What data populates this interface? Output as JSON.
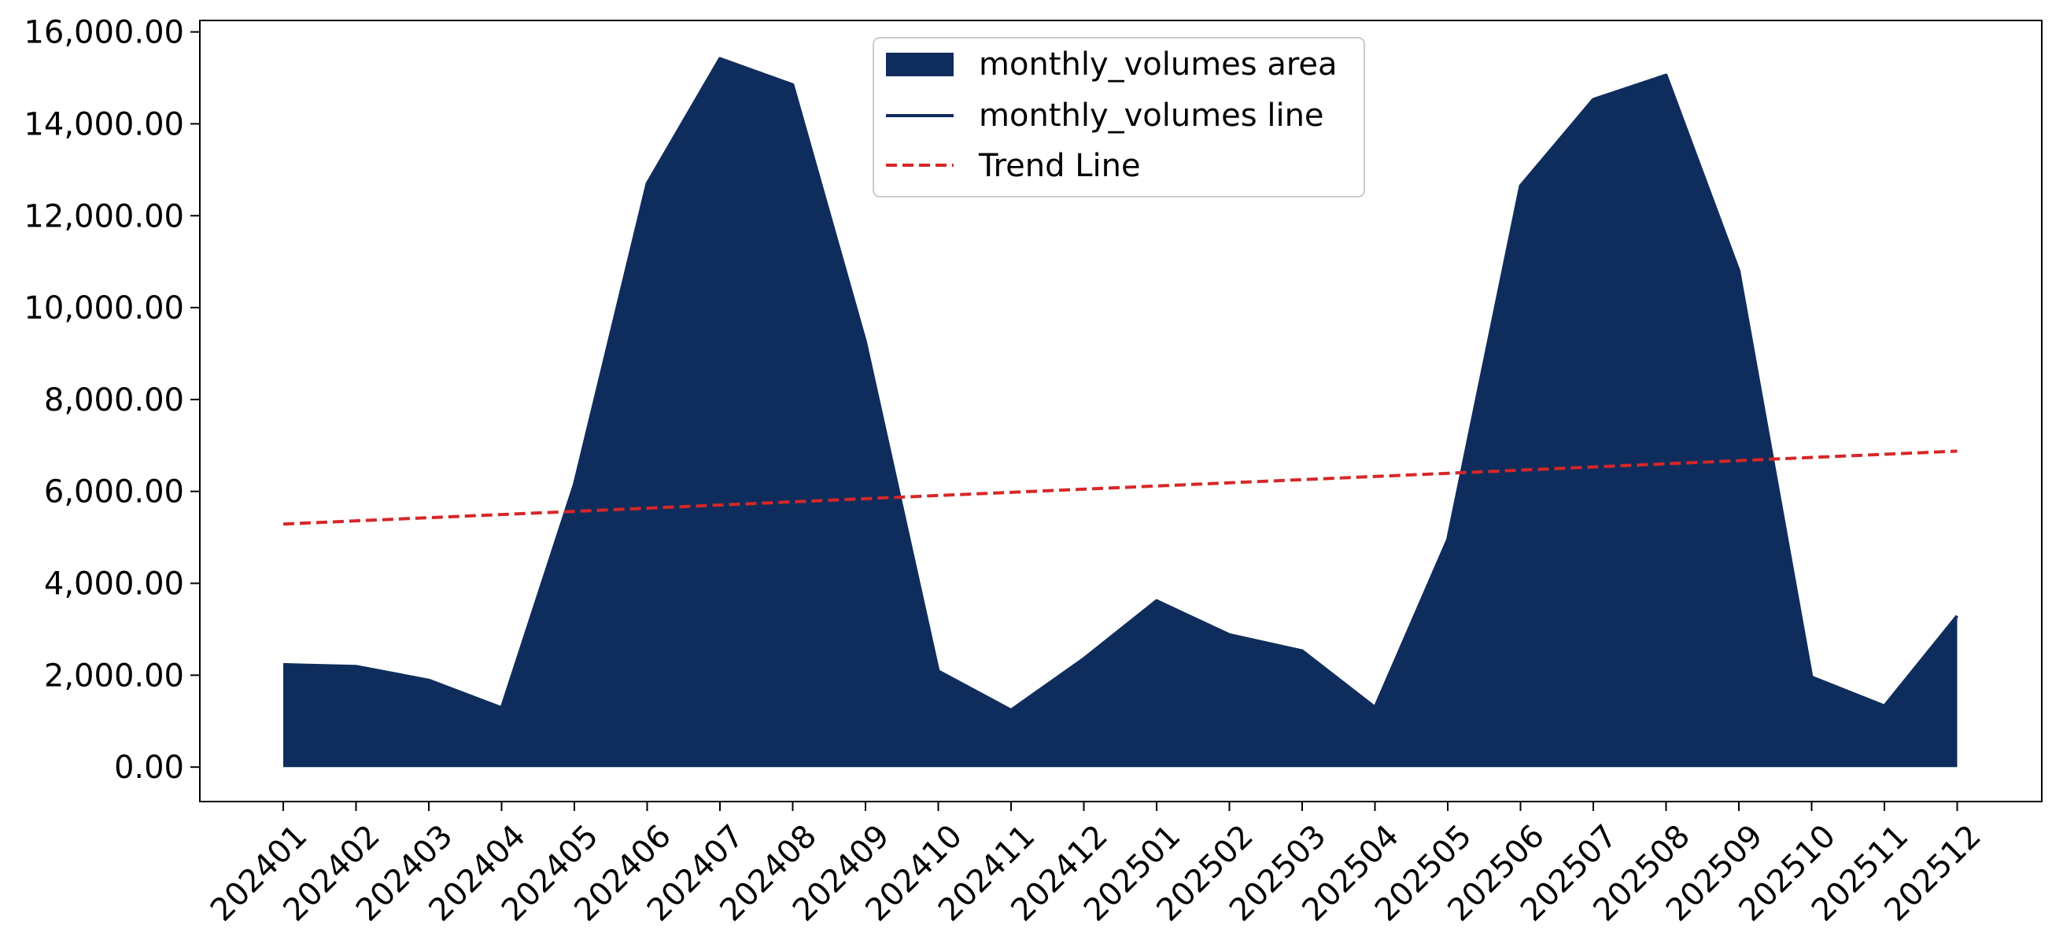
{
  "chart_data": {
    "type": "area",
    "title": "",
    "xlabel": "",
    "ylabel": "",
    "x": [
      "202401",
      "202402",
      "202403",
      "202404",
      "202405",
      "202406",
      "202407",
      "202408",
      "202409",
      "202410",
      "202411",
      "202412",
      "202501",
      "202502",
      "202503",
      "202504",
      "202505",
      "202506",
      "202507",
      "202508",
      "202509",
      "202510",
      "202511",
      "202512"
    ],
    "series": [
      {
        "name": "monthly_volumes area",
        "kind": "area",
        "color": "#0f2d5c",
        "values": [
          2230,
          2190,
          1890,
          1290,
          6150,
          12700,
          15420,
          14850,
          9250,
          2090,
          1240,
          2360,
          3620,
          2880,
          2530,
          1300,
          4950,
          12650,
          14530,
          15060,
          10800,
          1960,
          1330,
          3290
        ]
      },
      {
        "name": "monthly_volumes line",
        "kind": "line",
        "color": "#0f2d5c",
        "values": [
          2230,
          2190,
          1890,
          1290,
          6150,
          12700,
          15420,
          14850,
          9250,
          2090,
          1240,
          2360,
          3620,
          2880,
          2530,
          1300,
          4950,
          12650,
          14530,
          15060,
          10800,
          1960,
          1330,
          3290
        ]
      },
      {
        "name": "Trend Line",
        "kind": "line",
        "style": "dashed",
        "color": "#d62728",
        "values": [
          5290,
          5359,
          5428,
          5497,
          5566,
          5635,
          5704,
          5773,
          5842,
          5911,
          5980,
          6049,
          6118,
          6187,
          6256,
          6325,
          6394,
          6463,
          6532,
          6601,
          6670,
          6739,
          6808,
          6877
        ]
      }
    ],
    "y_ticks": [
      "0.00",
      "2,000.00",
      "4,000.00",
      "6,000.00",
      "8,000.00",
      "10,000.00",
      "12,000.00",
      "14,000.00",
      "16,000.00"
    ],
    "y_tick_values": [
      0,
      2000,
      4000,
      6000,
      8000,
      10000,
      12000,
      14000,
      16000
    ],
    "ylim": [
      -750,
      16250
    ],
    "grid": false,
    "legend": {
      "placement": "upper-center",
      "entries": [
        "monthly_volumes area",
        "monthly_volumes line",
        "Trend Line"
      ]
    }
  }
}
